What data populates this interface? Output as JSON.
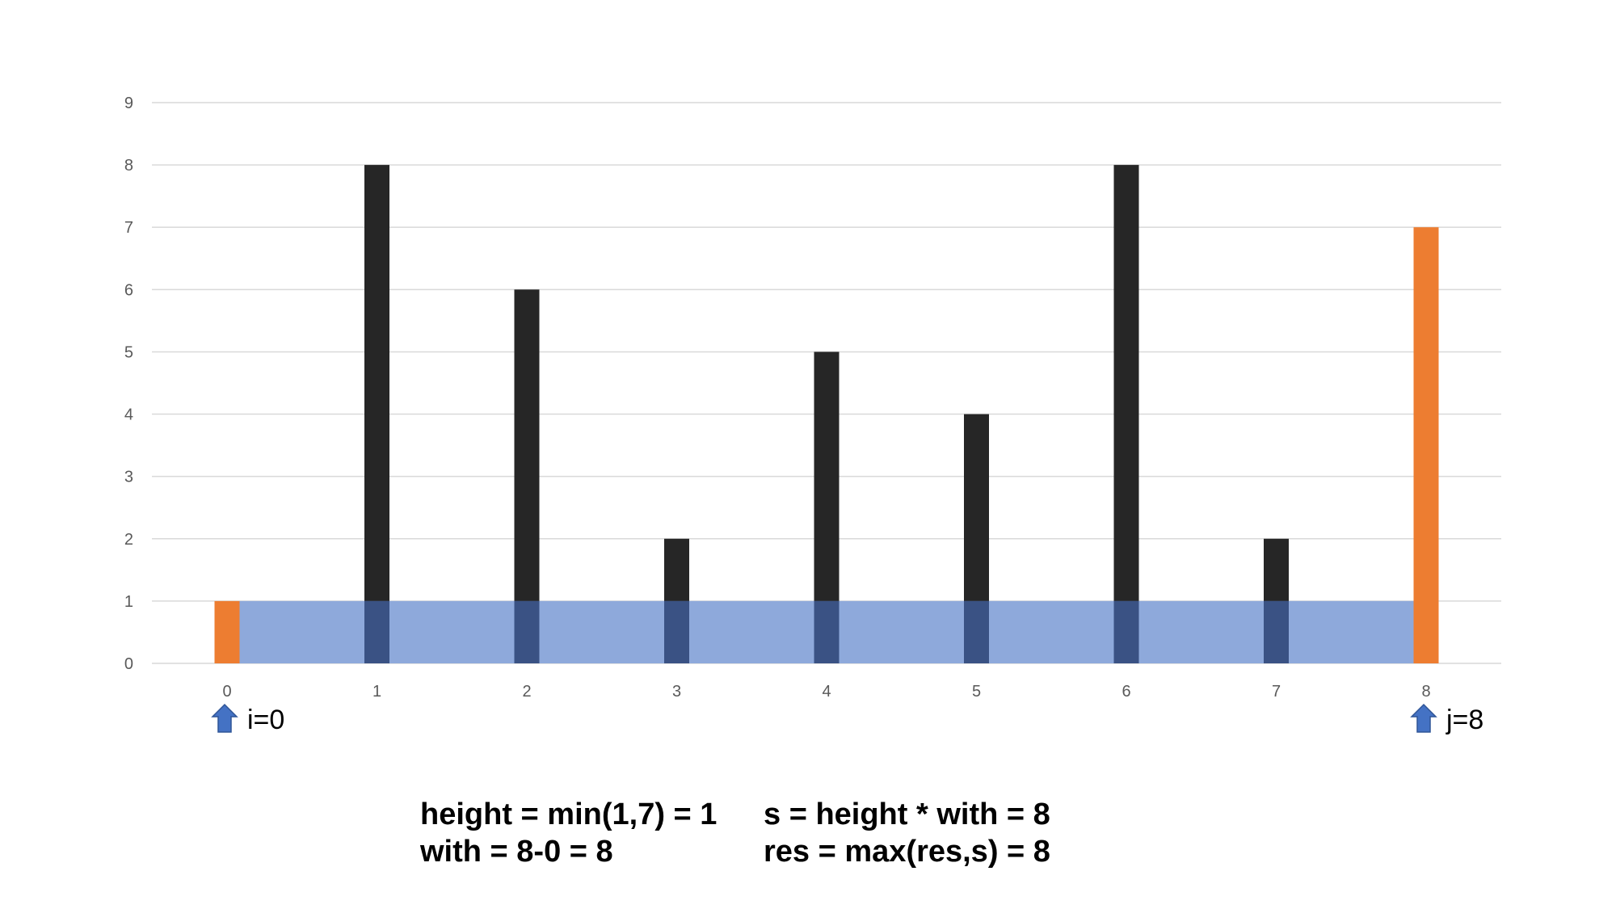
{
  "chart_data": {
    "type": "bar",
    "categories": [
      "0",
      "1",
      "2",
      "3",
      "4",
      "5",
      "6",
      "7",
      "8"
    ],
    "values": [
      1,
      8,
      6,
      2,
      5,
      4,
      8,
      2,
      7
    ],
    "highlighted_indices": [
      0,
      8
    ],
    "water_level": 1,
    "water_range": [
      0,
      8
    ],
    "ylim": [
      0,
      9
    ],
    "yticks": [
      "0",
      "1",
      "2",
      "3",
      "4",
      "5",
      "6",
      "7",
      "8",
      "9"
    ],
    "grid": true,
    "colors": {
      "bar": "#262626",
      "highlight": "#ED7D31",
      "water": "#8EA9DB",
      "submerged_bar": "#3A5284",
      "grid": "#D9D9D9",
      "arrow": "#4472C4"
    }
  },
  "pointers": [
    {
      "index": 0,
      "label": "i=0",
      "side": "right"
    },
    {
      "index": 8,
      "label": "j=8",
      "side": "right"
    }
  ],
  "formulas": {
    "height": "height = min(1,7) = 1",
    "width": "with = 8-0 = 8",
    "area": "s = height * with = 8",
    "result": "res = max(res,s) = 8"
  }
}
